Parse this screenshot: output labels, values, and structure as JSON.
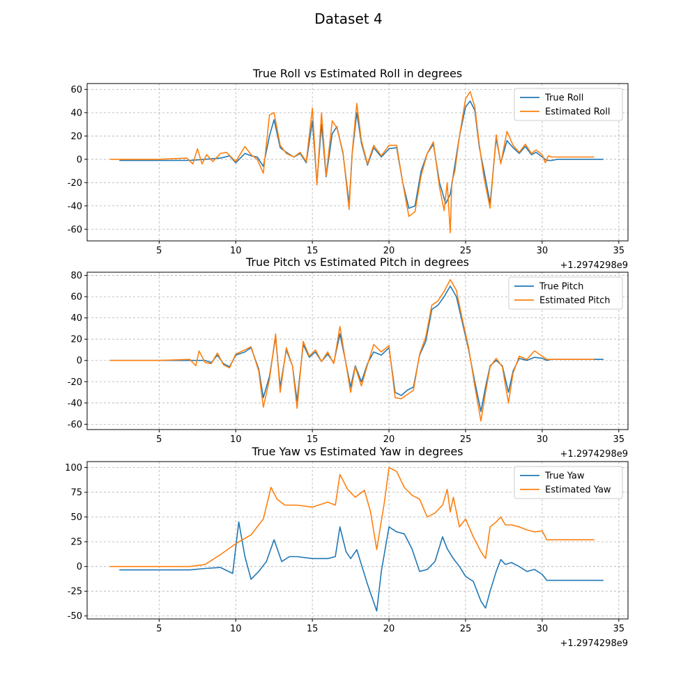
{
  "figure": {
    "suptitle": "Dataset 4"
  },
  "colors": {
    "true": "#1f77b4",
    "estimated": "#ff7f0e",
    "grid": "#b0b0b0"
  },
  "chart_data": [
    {
      "type": "line",
      "title": "True Roll vs Estimated Roll in degrees",
      "xlabel": "",
      "ylabel": "",
      "x_offset_label": "+1.2974298e9",
      "xlim": [
        0.3,
        35.6
      ],
      "ylim": [
        -70,
        65
      ],
      "xticks": [
        5,
        10,
        15,
        20,
        25,
        30,
        35
      ],
      "yticks": [
        -60,
        -40,
        -20,
        0,
        20,
        40,
        60
      ],
      "grid": true,
      "legend_position": "top-right",
      "series": [
        {
          "name": "True Roll",
          "x": [
            2.4,
            5,
            7,
            8,
            9,
            9.6,
            10,
            10.6,
            11,
            11.4,
            11.8,
            12.2,
            12.5,
            12.9,
            13.3,
            13.8,
            14.2,
            14.6,
            15,
            15.3,
            15.6,
            15.9,
            16.3,
            16.6,
            17,
            17.4,
            17.6,
            17.9,
            18.2,
            18.6,
            19,
            19.5,
            20,
            20.5,
            20.9,
            21.3,
            21.7,
            22.1,
            22.5,
            22.9,
            23.3,
            23.7,
            24,
            24.3,
            24.6,
            25,
            25.3,
            25.6,
            25.9,
            26.2,
            26.6,
            27,
            27.3,
            27.7,
            28.1,
            28.5,
            28.9,
            29.3,
            29.6,
            30,
            30.3,
            30.6,
            31,
            32,
            34
          ],
          "y": [
            -1,
            -1,
            -1,
            0,
            1,
            3,
            -3,
            5,
            3,
            2,
            -6,
            20,
            34,
            10,
            6,
            2,
            5,
            -3,
            33,
            -20,
            30,
            -15,
            22,
            28,
            5,
            -38,
            5,
            40,
            14,
            -5,
            10,
            2,
            9,
            10,
            -20,
            -42,
            -40,
            -10,
            5,
            13,
            -20,
            -38,
            -30,
            -5,
            20,
            45,
            50,
            42,
            10,
            -10,
            -38,
            18,
            -3,
            16,
            10,
            5,
            11,
            4,
            6,
            2,
            -1,
            -1,
            0,
            0,
            0
          ]
        },
        {
          "name": "Estimated Roll",
          "x": [
            1.8,
            5,
            6.8,
            7.2,
            7.5,
            7.8,
            8.1,
            8.5,
            9,
            9.4,
            10,
            10.6,
            11,
            11.4,
            11.8,
            12.2,
            12.5,
            12.9,
            13.3,
            13.8,
            14.2,
            14.6,
            15,
            15.3,
            15.6,
            15.9,
            16.3,
            16.6,
            17,
            17.4,
            17.6,
            17.9,
            18.2,
            18.6,
            19,
            19.5,
            20,
            20.5,
            20.9,
            21.3,
            21.7,
            22.1,
            22.5,
            22.9,
            23.3,
            23.6,
            23.8,
            24,
            24.1,
            24.3,
            24.6,
            25,
            25.3,
            25.6,
            25.9,
            26.2,
            26.6,
            27,
            27.3,
            27.7,
            28.1,
            28.5,
            28.9,
            29.3,
            29.6,
            30,
            30.2,
            30.4,
            30.6,
            31,
            32,
            33.4
          ],
          "y": [
            0,
            0,
            1,
            -4,
            9,
            -4,
            4,
            -2,
            5,
            6,
            -2,
            11,
            4,
            0,
            -12,
            38,
            40,
            12,
            5,
            2,
            6,
            -2,
            44,
            -22,
            40,
            -14,
            33,
            27,
            6,
            -43,
            6,
            48,
            16,
            -4,
            12,
            3,
            12,
            12,
            -20,
            -49,
            -45,
            -14,
            5,
            15,
            -24,
            -44,
            -20,
            -63,
            -20,
            -10,
            20,
            52,
            58,
            45,
            12,
            -16,
            -42,
            21,
            -4,
            24,
            12,
            6,
            13,
            5,
            8,
            4,
            -3,
            3,
            2,
            2,
            2,
            2
          ]
        }
      ]
    },
    {
      "type": "line",
      "title": "True Pitch vs Estimated Pitch in degrees",
      "xlabel": "",
      "ylabel": "",
      "x_offset_label": "+1.2974298e9",
      "xlim": [
        0.3,
        35.6
      ],
      "ylim": [
        -65,
        83
      ],
      "xticks": [
        5,
        10,
        15,
        20,
        25,
        30,
        35
      ],
      "yticks": [
        -60,
        -40,
        -20,
        0,
        20,
        40,
        60,
        80
      ],
      "grid": true,
      "legend_position": "top-right",
      "series": [
        {
          "name": "True Pitch",
          "x": [
            1.8,
            5,
            7,
            8,
            8.4,
            8.8,
            9.2,
            9.6,
            10,
            10.6,
            11,
            11.5,
            11.8,
            12.2,
            12.6,
            12.9,
            13.3,
            13.7,
            14,
            14.4,
            14.8,
            15.2,
            15.6,
            16,
            16.4,
            16.8,
            17.1,
            17.5,
            17.8,
            18.2,
            18.6,
            19,
            19.5,
            20,
            20.4,
            20.8,
            21.2,
            21.6,
            22,
            22.4,
            22.8,
            23.2,
            23.6,
            24,
            24.4,
            24.8,
            25.2,
            25.6,
            26,
            26.3,
            26.6,
            27,
            27.4,
            27.8,
            28.1,
            28.5,
            29,
            29.5,
            30,
            30.3,
            30.6,
            31,
            32,
            34
          ],
          "y": [
            0,
            0,
            0,
            0,
            -2,
            5,
            -3,
            -6,
            5,
            8,
            12,
            -8,
            -35,
            -15,
            22,
            -25,
            10,
            -5,
            -38,
            15,
            3,
            8,
            -1,
            6,
            -2,
            25,
            4,
            -25,
            -5,
            -20,
            -3,
            8,
            5,
            12,
            -30,
            -33,
            -28,
            -25,
            5,
            18,
            48,
            52,
            60,
            70,
            60,
            35,
            10,
            -20,
            -48,
            -25,
            -5,
            0,
            -5,
            -30,
            -10,
            2,
            0,
            3,
            2,
            0,
            1,
            1,
            1,
            1
          ]
        },
        {
          "name": "Estimated Pitch",
          "x": [
            1.8,
            5,
            7,
            7.4,
            7.6,
            8,
            8.4,
            8.8,
            9.2,
            9.6,
            10,
            10.6,
            11,
            11.5,
            11.8,
            12.2,
            12.6,
            12.9,
            13.3,
            13.7,
            14,
            14.4,
            14.8,
            15.2,
            15.6,
            16,
            16.4,
            16.8,
            17.1,
            17.5,
            17.8,
            18.2,
            18.6,
            19,
            19.5,
            20,
            20.4,
            20.8,
            21.2,
            21.6,
            22,
            22.4,
            22.8,
            23.2,
            23.6,
            24,
            24.4,
            24.8,
            25.2,
            25.6,
            26,
            26.3,
            26.6,
            27,
            27.4,
            27.8,
            28.1,
            28.5,
            29,
            29.5,
            30,
            30.3,
            30.6,
            31,
            32,
            33.4
          ],
          "y": [
            0,
            0,
            1,
            -5,
            9,
            -2,
            -3,
            7,
            -4,
            -7,
            6,
            10,
            13,
            -10,
            -44,
            -18,
            25,
            -30,
            12,
            -5,
            -45,
            18,
            4,
            10,
            -1,
            8,
            -3,
            32,
            5,
            -30,
            -6,
            -24,
            -4,
            15,
            8,
            14,
            -35,
            -36,
            -32,
            -28,
            6,
            22,
            52,
            56,
            65,
            76,
            66,
            38,
            12,
            -24,
            -57,
            -30,
            -6,
            2,
            -6,
            -40,
            -12,
            4,
            1,
            9,
            4,
            1,
            1,
            1,
            1,
            1
          ]
        }
      ]
    },
    {
      "type": "line",
      "title": "True Yaw vs Estimated Yaw in degrees",
      "xlabel": "",
      "ylabel": "",
      "x_offset_label": "+1.2974298e9",
      "xlim": [
        0.3,
        35.6
      ],
      "ylim": [
        -53,
        106
      ],
      "xticks": [
        5,
        10,
        15,
        20,
        25,
        30,
        35
      ],
      "yticks": [
        -50,
        -25,
        0,
        25,
        50,
        75,
        100
      ],
      "grid": true,
      "legend_position": "top-right",
      "series": [
        {
          "name": "True Yaw",
          "x": [
            2.4,
            7,
            8,
            9,
            9.8,
            10.2,
            10.6,
            11,
            11.5,
            12,
            12.5,
            13,
            13.5,
            14,
            15,
            15.5,
            16,
            16.5,
            16.8,
            17.2,
            17.5,
            17.9,
            18.2,
            18.6,
            19.2,
            19.5,
            20,
            20.5,
            21,
            21.5,
            22,
            22.5,
            23,
            23.5,
            23.8,
            24.2,
            24.6,
            25,
            25.5,
            26,
            26.3,
            26.6,
            27,
            27.3,
            27.6,
            28,
            28.5,
            29,
            29.5,
            30,
            30.3,
            31,
            32,
            34
          ],
          "y": [
            -3.5,
            -3.5,
            -2,
            -1,
            -7,
            45,
            10,
            -13,
            -5,
            5,
            27,
            5,
            10,
            10,
            8,
            8,
            8,
            10,
            40,
            15,
            8,
            17,
            2,
            -18,
            -45,
            -5,
            40,
            35,
            33,
            18,
            -5,
            -3,
            5,
            30,
            18,
            8,
            0,
            -10,
            -15,
            -35,
            -42,
            -25,
            -5,
            7,
            2,
            4,
            0,
            -5,
            -3,
            -8,
            -14,
            -14,
            -14,
            -14
          ]
        },
        {
          "name": "Estimated Yaw",
          "x": [
            1.8,
            7,
            8,
            9,
            10,
            11,
            11.8,
            12.3,
            12.7,
            13.2,
            14,
            15,
            16,
            16.5,
            16.8,
            17.3,
            17.8,
            18.4,
            18.8,
            19.2,
            19.7,
            20,
            20.5,
            21,
            21.5,
            22,
            22.5,
            23,
            23.5,
            23.8,
            24,
            24.2,
            24.6,
            25,
            25.5,
            26,
            26.3,
            26.6,
            27,
            27.3,
            27.6,
            28,
            28.5,
            29,
            29.5,
            30,
            30.3,
            31,
            33.4
          ],
          "y": [
            0,
            0,
            2,
            12,
            23,
            32,
            48,
            80,
            68,
            62,
            62,
            60,
            65,
            62,
            93,
            78,
            70,
            77,
            55,
            17,
            65,
            100,
            96,
            80,
            72,
            68,
            50,
            54,
            62,
            78,
            55,
            70,
            40,
            48,
            30,
            15,
            8,
            40,
            45,
            50,
            42,
            42,
            40,
            37,
            35,
            36,
            27,
            27,
            27
          ]
        }
      ]
    }
  ]
}
